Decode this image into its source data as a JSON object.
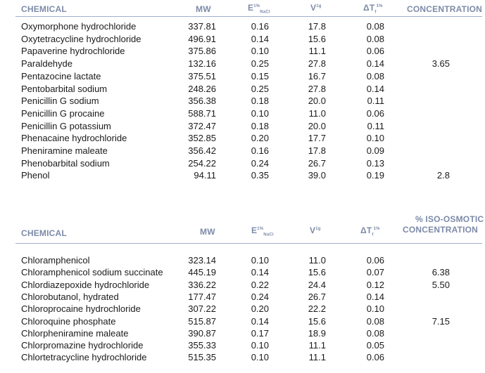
{
  "table1": {
    "headers": {
      "chemical": "CHEMICAL",
      "mw": "MW",
      "e": "E",
      "e_sup": "1%",
      "e_sub": "NaCl",
      "v": "V",
      "v_sup": "1g",
      "t": "ΔT",
      "t_sub": "f",
      "t_sup": "1%",
      "iso": "CONCENTRATION"
    },
    "rows": [
      {
        "chemical": "Oxymorphone hydrochloride",
        "mw": "337.81",
        "e": "0.16",
        "v": "17.8",
        "t": "0.08",
        "iso": ""
      },
      {
        "chemical": "Oxytetracycline hydrochloride",
        "mw": "496.91",
        "e": "0.14",
        "v": "15.6",
        "t": "0.08",
        "iso": ""
      },
      {
        "chemical": "Papaverine hydrochloride",
        "mw": "375.86",
        "e": "0.10",
        "v": "11.1",
        "t": "0.06",
        "iso": ""
      },
      {
        "chemical": "Paraldehyde",
        "mw": "132.16",
        "e": "0.25",
        "v": "27.8",
        "t": "0.14",
        "iso": "3.65"
      },
      {
        "chemical": "Pentazocine lactate",
        "mw": "375.51",
        "e": "0.15",
        "v": "16.7",
        "t": "0.08",
        "iso": ""
      },
      {
        "chemical": "Pentobarbital sodium",
        "mw": "248.26",
        "e": "0.25",
        "v": "27.8",
        "t": "0.14",
        "iso": ""
      },
      {
        "chemical": "Penicillin G sodium",
        "mw": "356.38",
        "e": "0.18",
        "v": "20.0",
        "t": "0.11",
        "iso": ""
      },
      {
        "chemical": "Penicillin G procaine",
        "mw": "588.71",
        "e": "0.10",
        "v": "11.0",
        "t": "0.06",
        "iso": ""
      },
      {
        "chemical": "Penicillin G potassium",
        "mw": "372.47",
        "e": "0.18",
        "v": "20.0",
        "t": "0.11",
        "iso": ""
      },
      {
        "chemical": "Phenacaine hydrochloride",
        "mw": "352.85",
        "e": "0.20",
        "v": "17.7",
        "t": "0.10",
        "iso": ""
      },
      {
        "chemical": "Pheniramine maleate",
        "mw": "356.42",
        "e": "0.16",
        "v": "17.8",
        "t": "0.09",
        "iso": ""
      },
      {
        "chemical": "Phenobarbital sodium",
        "mw": "254.22",
        "e": "0.24",
        "v": "26.7",
        "t": "0.13",
        "iso": ""
      },
      {
        "chemical": "Phenol",
        "mw": "94.11",
        "e": "0.35",
        "v": "39.0",
        "t": "0.19",
        "iso": "2.8"
      }
    ]
  },
  "table2": {
    "headers": {
      "chemical": "CHEMICAL",
      "mw": "MW",
      "e": "E",
      "e_sup": "1%",
      "e_sub": "NaCl",
      "v": "V",
      "v_sup": "1g",
      "t": "ΔT",
      "t_sub": "f",
      "t_sup": "1%",
      "iso_line1": "% ISO-OSMOTIC",
      "iso_line2": "CONCENTRATION"
    },
    "rows": [
      {
        "chemical": "Chloramphenicol",
        "mw": "323.14",
        "e": "0.10",
        "v": "11.0",
        "t": "0.06",
        "iso": ""
      },
      {
        "chemical": "Chloramphenicol sodium succinate",
        "mw": "445.19",
        "e": "0.14",
        "v": "15.6",
        "t": "0.07",
        "iso": "6.38"
      },
      {
        "chemical": "Chlordiazepoxide hydrochloride",
        "mw": "336.22",
        "e": "0.22",
        "v": "24.4",
        "t": "0.12",
        "iso": "5.50"
      },
      {
        "chemical": "Chlorobutanol, hydrated",
        "mw": "177.47",
        "e": "0.24",
        "v": "26.7",
        "t": "0.14",
        "iso": ""
      },
      {
        "chemical": "Chloroprocaine hydrochloride",
        "mw": "307.22",
        "e": "0.20",
        "v": "22.2",
        "t": "0.10",
        "iso": ""
      },
      {
        "chemical": "Chloroquine phosphate",
        "mw": "515.87",
        "e": "0.14",
        "v": "15.6",
        "t": "0.08",
        "iso": "7.15"
      },
      {
        "chemical": "Chlorpheniramine maleate",
        "mw": "390.87",
        "e": "0.17",
        "v": "18.9",
        "t": "0.08",
        "iso": ""
      },
      {
        "chemical": "Chlorpromazine hydrochloride",
        "mw": "355.33",
        "e": "0.10",
        "v": "11.1",
        "t": "0.05",
        "iso": ""
      },
      {
        "chemical": "Chlortetracycline hydrochloride",
        "mw": "515.35",
        "e": "0.10",
        "v": "11.1",
        "t": "0.06",
        "iso": ""
      }
    ]
  }
}
